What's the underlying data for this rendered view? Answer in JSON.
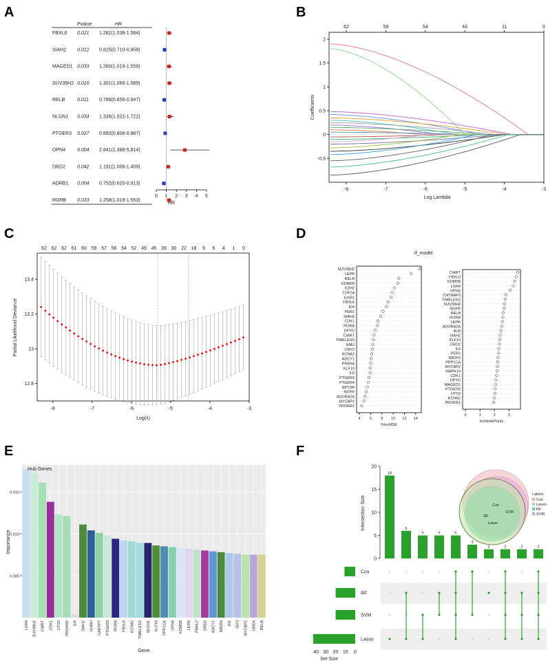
{
  "panel_labels": [
    "A",
    "B",
    "C",
    "D",
    "E",
    "F"
  ],
  "chart_data": [
    {
      "id": "A",
      "type": "forest",
      "col_headers": {
        "gene": "",
        "pvalue": "Pvalue",
        "hr": "HR"
      },
      "xlabel": "HR",
      "xlim": [
        0,
        5
      ],
      "xticks": [
        0,
        1,
        2,
        3,
        4,
        5
      ],
      "ref_line": 1,
      "rows": [
        {
          "gene": "FBXL6",
          "p": "0.021",
          "hr_text": "1.282(1.038-1.584)",
          "hr": 1.282,
          "lo": 1.038,
          "hi": 1.584
        },
        {
          "gene": "SIAH2",
          "p": "0.012",
          "hr_text": "0.825(0.710-0.958)",
          "hr": 0.825,
          "lo": 0.71,
          "hi": 0.958
        },
        {
          "gene": "MAGED1",
          "p": "0.033",
          "hr_text": "1.260(1.019-1.559)",
          "hr": 1.26,
          "lo": 1.019,
          "hi": 1.559
        },
        {
          "gene": "SUV39H2",
          "p": "0.010",
          "hr_text": "1.301(1.066-1.589)",
          "hr": 1.301,
          "lo": 1.066,
          "hi": 1.589
        },
        {
          "gene": "RELB",
          "p": "0.011",
          "hr_text": "0.788(0.656-0.947)",
          "hr": 0.788,
          "lo": 0.656,
          "hi": 0.947
        },
        {
          "gene": "NLGN1",
          "p": "0.034",
          "hr_text": "1.326(1.022-1.722)",
          "hr": 1.326,
          "lo": 1.022,
          "hi": 1.722
        },
        {
          "gene": "PTGER3",
          "p": "0.027",
          "hr_text": "0.892(0.806-0.987)",
          "hr": 0.892,
          "lo": 0.806,
          "hi": 0.987
        },
        {
          "gene": "OPN4",
          "p": "0.004",
          "hr_text": "2.841(1.388-5.814)",
          "hr": 2.841,
          "lo": 1.388,
          "hi": 5.814
        },
        {
          "gene": "DRD2",
          "p": "0.042",
          "hr_text": "1.191(1.006-1.409)",
          "hr": 1.191,
          "lo": 1.006,
          "hi": 1.409
        },
        {
          "gene": "ADRB1",
          "p": "0.004",
          "hr_text": "0.752(0.620-0.913)",
          "hr": 0.752,
          "lo": 0.62,
          "hi": 0.913
        },
        {
          "gene": "RORB",
          "p": "0.033",
          "hr_text": "1.258(1.019-1.553)",
          "hr": 1.258,
          "lo": 1.019,
          "hi": 1.553
        }
      ],
      "colors": {
        "risk": "#cc2222",
        "protective": "#2233cc"
      }
    },
    {
      "id": "B",
      "type": "line",
      "xlabel": "Log Lambda",
      "ylabel": "Coefficients",
      "xlim": [
        -8.4,
        -3
      ],
      "ylim": [
        -1.0,
        2.0
      ],
      "xticks": [
        -8,
        -7,
        -6,
        -5,
        -4,
        -3
      ],
      "yticks": [
        -0.5,
        0,
        0.5,
        1,
        1.5,
        2
      ],
      "top_ticks": [
        {
          "x": -8,
          "label": "62"
        },
        {
          "x": -7,
          "label": "59"
        },
        {
          "x": -6,
          "label": "54"
        },
        {
          "x": -5,
          "label": "43"
        },
        {
          "x": -4,
          "label": "11"
        },
        {
          "x": -3,
          "label": "0"
        }
      ],
      "series_note": "LASSO coefficient paths",
      "series": [
        {
          "name": "path-1",
          "start": 1.9,
          "zero_at": -3.4,
          "color": "#e0708a"
        },
        {
          "name": "path-2",
          "start": 1.8,
          "zero_at": -5.0,
          "color": "#80d880"
        },
        {
          "name": "path-3",
          "start": 0.48,
          "zero_at": -3.8,
          "color": "#c060c0"
        },
        {
          "name": "path-4",
          "start": 0.42,
          "zero_at": -4.6,
          "color": "#6090e0"
        },
        {
          "name": "path-5",
          "start": 0.35,
          "zero_at": -3.9,
          "color": "#e0a030"
        },
        {
          "name": "path-6",
          "start": 0.3,
          "zero_at": -5.2,
          "color": "#40c0c0"
        },
        {
          "name": "path-7",
          "start": 0.25,
          "zero_at": -4.2,
          "color": "#a0a0a0"
        },
        {
          "name": "path-8",
          "start": 0.2,
          "zero_at": -5.6,
          "color": "#9070e0"
        },
        {
          "name": "path-9",
          "start": 0.15,
          "zero_at": -4.4,
          "color": "#60a060"
        },
        {
          "name": "path-10",
          "start": 0.1,
          "zero_at": -6.0,
          "color": "#e07040"
        },
        {
          "name": "path-11",
          "start": 0.05,
          "zero_at": -4.8,
          "color": "#5090b0"
        },
        {
          "name": "path-12",
          "start": -0.05,
          "zero_at": -5.4,
          "color": "#b05050"
        },
        {
          "name": "path-13",
          "start": -0.1,
          "zero_at": -4.5,
          "color": "#40b080"
        },
        {
          "name": "path-14",
          "start": -0.15,
          "zero_at": -5.9,
          "color": "#d0a0d0"
        },
        {
          "name": "path-15",
          "start": -0.2,
          "zero_at": -4.1,
          "color": "#7070a0"
        },
        {
          "name": "path-16",
          "start": -0.28,
          "zero_at": -5.1,
          "color": "#a0c040"
        },
        {
          "name": "path-17",
          "start": -0.35,
          "zero_at": -4.0,
          "color": "#303030"
        },
        {
          "name": "path-18",
          "start": -0.42,
          "zero_at": -4.7,
          "color": "#30a0e0"
        },
        {
          "name": "path-19",
          "start": -0.55,
          "zero_at": -4.3,
          "color": "#606060"
        },
        {
          "name": "path-20",
          "start": -0.68,
          "zero_at": -3.9,
          "color": "#40c080"
        },
        {
          "name": "path-21",
          "start": -0.85,
          "zero_at": -3.6,
          "color": "#555555"
        }
      ]
    },
    {
      "id": "C",
      "type": "line-errorbar",
      "xlabel": "Log(λ)",
      "ylabel": "Partial Likelihood Deviance",
      "xlim": [
        -8.4,
        -3
      ],
      "ylim": [
        12.7,
        13.55
      ],
      "xticks": [
        -8,
        -7,
        -6,
        -5,
        -4,
        -3
      ],
      "yticks": [
        12.8,
        13,
        13.2,
        13.4
      ],
      "top_ticks": [
        "62",
        "62",
        "62",
        "61",
        "60",
        "59",
        "57",
        "56",
        "54",
        "52",
        "49",
        "45",
        "39",
        "30",
        "22",
        "18",
        "9",
        "6",
        "4",
        "1",
        "0"
      ],
      "vlines": [
        -5.33,
        -4.55
      ],
      "curve": {
        "x_start": -8.3,
        "x_end": -3.15,
        "n": 50,
        "min_x": -5.35,
        "start": 13.24,
        "min": 12.905,
        "end": 13.065,
        "err_start": 0.285,
        "err_end": 0.185
      },
      "colors": {
        "point": "#ee0000",
        "errorbar": "#bbbbbb"
      }
    },
    {
      "id": "D",
      "type": "dotplot",
      "title": "rf_model",
      "left": {
        "xlabel": "%IncMSE",
        "xlim": [
          3.5,
          15
        ],
        "xticks": [
          4,
          6,
          8,
          10,
          12,
          14
        ],
        "labels": [
          "SUV39H2",
          "LEPR",
          "RELB",
          "KDM5B",
          "EZH2",
          "TOP2A",
          "EGR1",
          "FBXL6",
          "ID4",
          "PER1",
          "SIAH2",
          "CDK1",
          "RORB",
          "DPYD",
          "CIART",
          "TIMELESS",
          "NMU",
          "CRY2",
          "KCNA2",
          "ADCY1",
          "PPARA",
          "KLF10",
          "IL6",
          "PTGER3",
          "PTGER4",
          "NPY2R",
          "NGFR",
          "ADORA2A",
          "MYCBP2",
          "PROKR1"
        ],
        "values": [
          14.7,
          13.2,
          11.0,
          10.8,
          10.2,
          9.8,
          9.6,
          9.1,
          8.8,
          8.2,
          7.8,
          7.3,
          7.2,
          6.8,
          6.6,
          6.5,
          6.4,
          6.3,
          6.2,
          6.1,
          6.0,
          5.9,
          5.9,
          5.7,
          5.6,
          5.4,
          5.2,
          5.0,
          4.8,
          4.4
        ]
      },
      "right": {
        "xlabel": "IncNodePurity",
        "xlim": [
          -0.2,
          3.8
        ],
        "xticks": [
          0,
          1,
          2,
          3
        ],
        "labels": [
          "CIART",
          "FBXL6",
          "KDM5B",
          "LGR4",
          "OPN4",
          "CNTNAP2",
          "TIMELESS",
          "SUV39H2",
          "NGFR",
          "RELB",
          "RORB",
          "LEPR",
          "ADORA2A",
          "ALB",
          "SIAH2",
          "KLF10",
          "DRD2",
          "IL6",
          "PER1",
          "NR2F6",
          "PPP1CA",
          "MYCBP2",
          "MAPK10",
          "CDK1",
          "DPYD",
          "MAGED1",
          "PTGER3",
          "UTS2",
          "KCNA2",
          "PROKR1"
        ],
        "values": [
          3.6,
          3.5,
          3.4,
          3.3,
          3.1,
          2.8,
          2.75,
          2.7,
          2.68,
          2.6,
          2.58,
          2.55,
          2.5,
          2.45,
          2.4,
          2.38,
          2.35,
          2.3,
          2.28,
          2.25,
          2.22,
          2.2,
          2.18,
          2.15,
          2.1,
          2.08,
          2.05,
          2.03,
          2.0,
          1.95
        ]
      }
    },
    {
      "id": "E",
      "type": "bar",
      "title": "Hub Genes",
      "xlabel": "Gene",
      "ylabel": "Importance",
      "ylim": [
        0,
        0.0182
      ],
      "yticks": [
        0.005,
        0.01,
        0.015
      ],
      "categories": [
        "LGR4",
        "SUV39H2",
        "CIART",
        "CDK1",
        "UTS2",
        "PROKR2",
        "ID4",
        "SIAH2",
        "GHRH",
        "CARTPT",
        "PTGER3",
        "RORB",
        "FBXL6",
        "KCNA2",
        "TIMELESS",
        "NLGN1",
        "KLF10",
        "PPP1CA",
        "OPN4",
        "KDM5B",
        "LEPR",
        "PIWIL2",
        "DRD2",
        "ADCY1",
        "NR2F6",
        "ID1",
        "SIX3",
        "MYCBP2",
        "DRD4",
        "RELB"
      ],
      "values": [
        0.0177,
        0.0173,
        0.0161,
        0.0138,
        0.0123,
        0.0121,
        0.0004,
        0.0111,
        0.0104,
        0.0101,
        0.0098,
        0.0094,
        0.0092,
        0.0091,
        0.0089,
        0.0089,
        0.0086,
        0.0085,
        0.0084,
        0.0083,
        0.0082,
        0.0081,
        0.008,
        0.0079,
        0.0078,
        0.0077,
        0.0076,
        0.0075,
        0.0075,
        0.0075
      ],
      "colors": [
        "#c7dff0",
        "#c9ecd6",
        "#a5e0b3",
        "#9a2f9a",
        "#b3e6c5",
        "#a8dcb7",
        "#dddddd",
        "#4d8a3a",
        "#2f5f99",
        "#8ed1a8",
        "#c6e8d4",
        "#2a2680",
        "#bcd8ef",
        "#9ed9d6",
        "#a0dbe0",
        "#23236e",
        "#4e8f3a",
        "#4f8caf",
        "#86d0b0",
        "#d8e8f6",
        "#e2d6ef",
        "#bfe3c9",
        "#a43ba0",
        "#5d97d6",
        "#4b8a3c",
        "#a9c7e6",
        "#b8bfea",
        "#b7e3ab",
        "#bca5d9",
        "#d6d090"
      ]
    },
    {
      "id": "F",
      "type": "upset",
      "ylabel": "Intersection Size",
      "set_size_label": "Set Size",
      "ylim": [
        0,
        20
      ],
      "yticks": [
        0,
        5,
        10,
        15,
        20
      ],
      "intersection_values": [
        18,
        6,
        5,
        5,
        5,
        3,
        2,
        2,
        2,
        2
      ],
      "intersection_labels": [
        "18",
        "6",
        "5",
        "5",
        "5",
        "3",
        "2",
        "2",
        "2",
        "2"
      ],
      "sets": [
        {
          "name": "Cox",
          "size": 11
        },
        {
          "name": "RF",
          "size": 20
        },
        {
          "name": "SVM",
          "size": 20
        },
        {
          "name": "Lasso",
          "size": 43
        }
      ],
      "set_axis_ticks": [
        "40",
        "30",
        "20",
        "10",
        "0"
      ],
      "matrix": [
        [
          3
        ],
        [
          1,
          3
        ],
        [
          2,
          3
        ],
        [
          1,
          2
        ],
        [
          0,
          1,
          2,
          3
        ],
        [
          0,
          2
        ],
        [
          1
        ],
        [
          0,
          1,
          2,
          3
        ],
        [
          1,
          2,
          3
        ],
        [
          0,
          1,
          2,
          3
        ]
      ],
      "venn": {
        "legend_title": "Labels",
        "labels": [
          "Cox",
          "Lasso",
          "RF",
          "SVM"
        ],
        "colors": [
          "#f2b4b4",
          "#bfe7a8",
          "#69d6a9",
          "#e7a4e9"
        ],
        "inner_labels": [
          "Cox",
          "RF",
          "SVM",
          "Lasso"
        ]
      },
      "colors": {
        "bar": "#2aa12a",
        "dot_on": "#2aa12a",
        "dot_off": "#dddddd"
      }
    }
  ]
}
